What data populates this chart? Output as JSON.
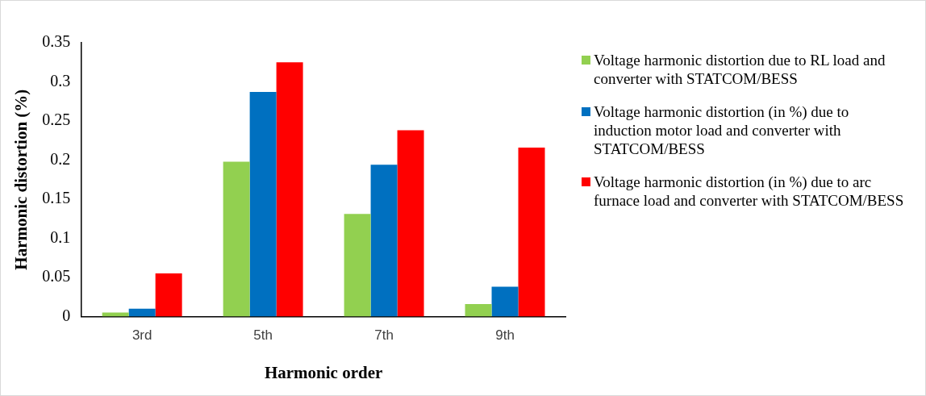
{
  "chart_data": {
    "type": "bar",
    "xlabel": "Harmonic order",
    "ylabel": "Harmonic distortion (%)",
    "categories": [
      "3rd",
      "5th",
      "7th",
      "9th"
    ],
    "series": [
      {
        "name": "Voltage harmonic distortion due to RL load and converter with STATCOM/BESS",
        "color": "#92d050",
        "values": [
          0.005,
          0.198,
          0.131,
          0.016
        ]
      },
      {
        "name": "Voltage harmonic distortion (in %) due to induction motor load and converter with STATCOM/BESS",
        "color": "#0070c0",
        "values": [
          0.01,
          0.287,
          0.194,
          0.038
        ]
      },
      {
        "name": "Voltage harmonic distortion (in %) due to arc furnace load and converter with STATCOM/BESS",
        "color": "#ff0000",
        "values": [
          0.055,
          0.325,
          0.238,
          0.216
        ]
      }
    ],
    "ylim": [
      0,
      0.35
    ],
    "yticks": [
      0,
      0.05,
      0.1,
      0.15,
      0.2,
      0.25,
      0.3,
      0.35
    ],
    "grid": false,
    "legend": "right"
  }
}
